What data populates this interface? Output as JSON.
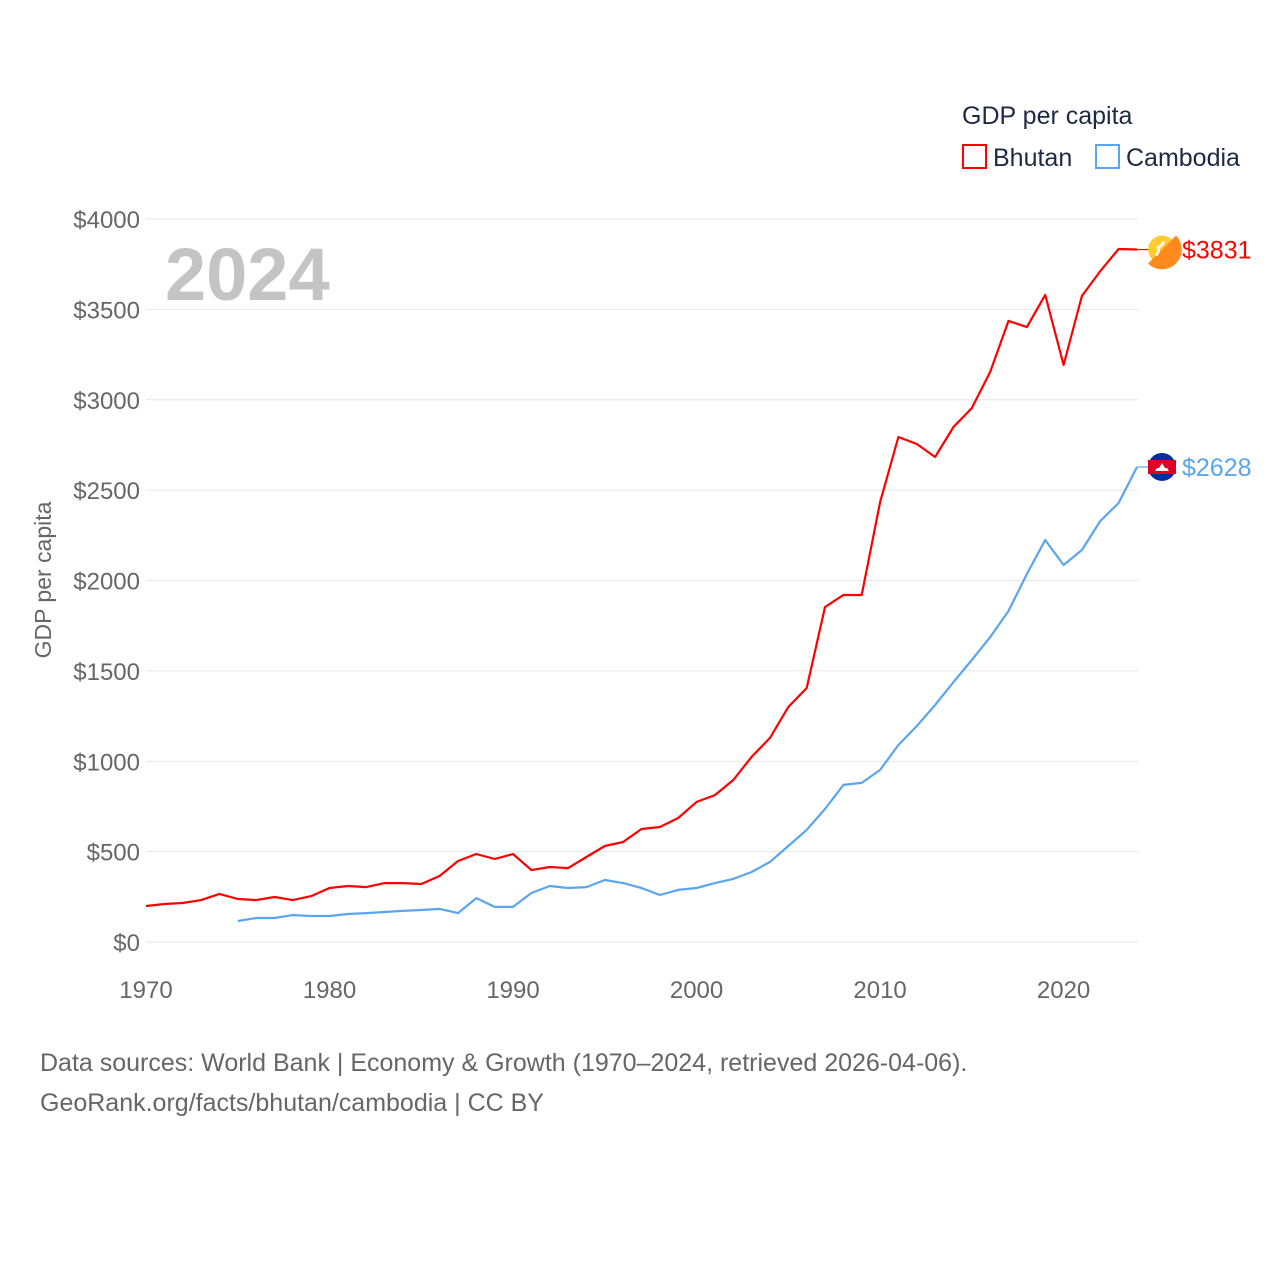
{
  "chart_data": {
    "type": "line",
    "title": "GDP per capita",
    "ylabel": "GDP per capita",
    "xlabel": "",
    "year_label": "2024",
    "ylim": [
      0,
      4000
    ],
    "xlim": [
      1970,
      2024
    ],
    "yticks": [
      0,
      500,
      1000,
      1500,
      2000,
      2500,
      3000,
      3500,
      4000
    ],
    "ytick_labels": [
      "$0",
      "$500",
      "$1000",
      "$1500",
      "$2000",
      "$2500",
      "$3000",
      "$3500",
      "$4000"
    ],
    "xticks": [
      1970,
      1980,
      1990,
      2000,
      2010,
      2020
    ],
    "xtick_labels": [
      "1970",
      "1980",
      "1990",
      "2000",
      "2010",
      "2020"
    ],
    "grid": true,
    "legend_position": "top-right",
    "series": [
      {
        "name": "Bhutan",
        "color": "#ff0000",
        "end_label": "$3831",
        "start_year": 1970,
        "values": [
          199,
          210,
          216,
          232,
          266,
          238,
          232,
          249,
          232,
          254,
          299,
          310,
          304,
          326,
          326,
          321,
          365,
          448,
          487,
          459,
          487,
          398,
          415,
          409,
          470,
          531,
          553,
          625,
          636,
          686,
          775,
          813,
          896,
          1024,
          1129,
          1300,
          1405,
          1853,
          1920,
          1920,
          2434,
          2794,
          2755,
          2683,
          2849,
          2954,
          3154,
          3436,
          3402,
          3580,
          3192,
          3574,
          3712,
          3834,
          3831
        ]
      },
      {
        "name": "Cambodia",
        "color": "#5aa5f0",
        "end_label": "$2628",
        "start_year": 1975,
        "values": [
          116,
          133,
          133,
          149,
          144,
          144,
          155,
          160,
          166,
          172,
          177,
          183,
          160,
          243,
          194,
          194,
          271,
          310,
          299,
          304,
          343,
          326,
          299,
          260,
          288,
          299,
          326,
          349,
          387,
          443,
          531,
          620,
          736,
          869,
          880,
          952,
          1090,
          1195,
          1311,
          1438,
          1560,
          1687,
          1831,
          2036,
          2224,
          2086,
          2169,
          2329,
          2429,
          2628
        ]
      }
    ]
  },
  "footer": {
    "line1": "Data sources: World Bank | Economy & Growth (1970–2024, retrieved 2026-04-06).",
    "line2": "GeoRank.org/facts/bhutan/cambodia | CC BY"
  }
}
